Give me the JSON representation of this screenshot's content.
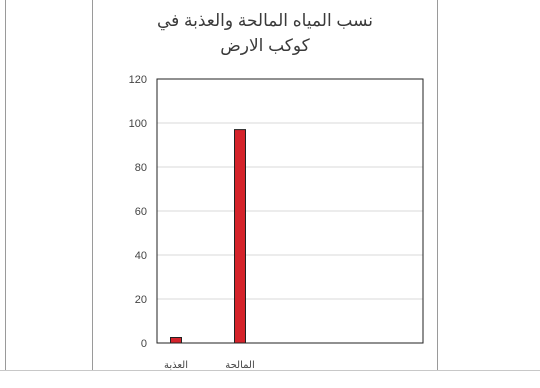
{
  "chart_data": {
    "type": "bar",
    "title_lines": [
      "نسب المياه المالحة والعذبة في",
      "كوكب الارض"
    ],
    "categories": [
      "العذبة",
      "المالحة"
    ],
    "values": [
      2.5,
      97
    ],
    "ylim": [
      0,
      120
    ],
    "yticks": [
      0,
      20,
      40,
      60,
      80,
      100,
      120
    ],
    "grid": true,
    "legend": "none",
    "bar_color": "#d4232b",
    "bar_edge_color": "#222222"
  }
}
